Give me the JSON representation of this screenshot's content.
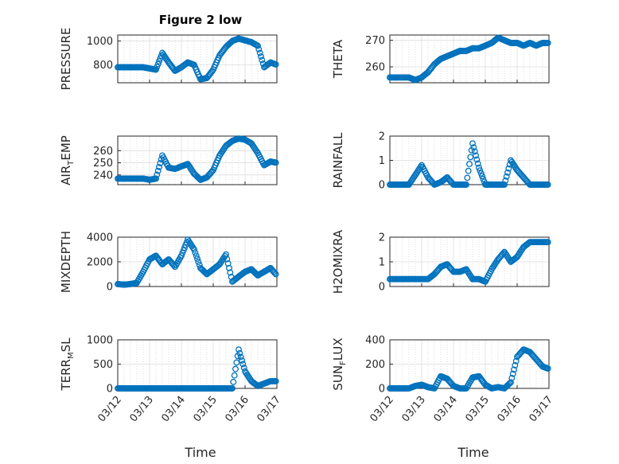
{
  "figure_title": "Figure 2 low",
  "x_label": "Time",
  "x_ticks": [
    "03/12",
    "03/13",
    "03/14",
    "03/15",
    "03/16",
    "03/17"
  ],
  "colors": {
    "marker": "#0072BD",
    "axis": "#262626",
    "grid": "#dcdcdc",
    "minor_grid": "#c8c8c8"
  },
  "chart_data": [
    {
      "type": "scatter",
      "ylabel": "PRESSURE",
      "ylim": [
        650,
        1050
      ],
      "yticks": [
        800,
        1000
      ],
      "xlim": [
        0,
        5
      ],
      "x": [
        0.0,
        0.2,
        0.4,
        0.6,
        0.8,
        1.0,
        1.2,
        1.4,
        1.6,
        1.8,
        2.0,
        2.2,
        2.4,
        2.6,
        2.8,
        3.0,
        3.2,
        3.4,
        3.6,
        3.8,
        4.0,
        4.2,
        4.4,
        4.6,
        4.8,
        5.0
      ],
      "y": [
        780,
        780,
        780,
        780,
        780,
        770,
        760,
        900,
        820,
        750,
        780,
        820,
        800,
        680,
        690,
        760,
        880,
        950,
        1000,
        1020,
        1005,
        990,
        960,
        780,
        820,
        800
      ]
    },
    {
      "type": "scatter",
      "ylabel": "THETA",
      "ylim": [
        254,
        272
      ],
      "yticks": [
        260,
        270
      ],
      "xlim": [
        0,
        5
      ],
      "x": [
        0.0,
        0.2,
        0.4,
        0.6,
        0.8,
        1.0,
        1.2,
        1.4,
        1.6,
        1.8,
        2.0,
        2.2,
        2.4,
        2.6,
        2.8,
        3.0,
        3.2,
        3.4,
        3.6,
        3.8,
        4.0,
        4.2,
        4.4,
        4.6,
        4.8,
        5.0
      ],
      "y": [
        256,
        256,
        256,
        256,
        255,
        256,
        258,
        261,
        263,
        264,
        265,
        266,
        266,
        267,
        267,
        268,
        269,
        271,
        270,
        269,
        269,
        268,
        269,
        268,
        269,
        269
      ]
    },
    {
      "type": "scatter",
      "ylabel": "AIR_TEMP",
      "ylim": [
        232,
        272
      ],
      "yticks": [
        240,
        250,
        260
      ],
      "xlim": [
        0,
        5
      ],
      "x": [
        0.0,
        0.2,
        0.4,
        0.6,
        0.8,
        1.0,
        1.2,
        1.4,
        1.6,
        1.8,
        2.0,
        2.2,
        2.4,
        2.6,
        2.8,
        3.0,
        3.2,
        3.4,
        3.6,
        3.8,
        4.0,
        4.2,
        4.4,
        4.6,
        4.8,
        5.0
      ],
      "y": [
        237,
        237,
        237,
        237,
        237,
        236,
        237,
        256,
        246,
        245,
        247,
        249,
        241,
        236,
        238,
        244,
        256,
        264,
        268,
        270,
        269,
        266,
        258,
        248,
        251,
        250
      ]
    },
    {
      "type": "scatter",
      "ylabel": "RAINFALL",
      "ylim": [
        0,
        2
      ],
      "yticks": [
        0,
        1,
        2
      ],
      "xlim": [
        0,
        5
      ],
      "x": [
        0.0,
        0.2,
        0.4,
        0.6,
        0.8,
        1.0,
        1.2,
        1.4,
        1.6,
        1.8,
        2.0,
        2.2,
        2.4,
        2.6,
        2.8,
        3.0,
        3.2,
        3.4,
        3.6,
        3.8,
        4.0,
        4.2,
        4.4,
        4.6,
        4.8,
        5.0
      ],
      "y": [
        0,
        0,
        0,
        0,
        0.4,
        0.8,
        0.3,
        0,
        0.1,
        0.3,
        0,
        0,
        0,
        1.7,
        0.7,
        0,
        0,
        0,
        0,
        1.0,
        0.6,
        0.3,
        0,
        0,
        0,
        0
      ]
    },
    {
      "type": "scatter",
      "ylabel": "MIXDEPTH",
      "ylim": [
        0,
        4000
      ],
      "yticks": [
        0,
        2000,
        4000
      ],
      "xlim": [
        0,
        5
      ],
      "x": [
        0.0,
        0.2,
        0.4,
        0.6,
        0.8,
        1.0,
        1.2,
        1.4,
        1.6,
        1.8,
        2.0,
        2.2,
        2.4,
        2.6,
        2.8,
        3.0,
        3.2,
        3.4,
        3.6,
        3.8,
        4.0,
        4.2,
        4.4,
        4.6,
        4.8,
        5.0
      ],
      "y": [
        200,
        150,
        200,
        300,
        1200,
        2200,
        2500,
        1800,
        2200,
        1600,
        2500,
        3800,
        3000,
        1500,
        1000,
        1400,
        1800,
        2600,
        400,
        800,
        1200,
        1400,
        900,
        1200,
        1500,
        900
      ]
    },
    {
      "type": "scatter",
      "ylabel": "H2OMIXRA",
      "ylim": [
        0,
        2
      ],
      "yticks": [
        0,
        1,
        2
      ],
      "xlim": [
        0,
        5
      ],
      "x": [
        0.0,
        0.2,
        0.4,
        0.6,
        0.8,
        1.0,
        1.2,
        1.4,
        1.6,
        1.8,
        2.0,
        2.2,
        2.4,
        2.6,
        2.8,
        3.0,
        3.2,
        3.4,
        3.6,
        3.8,
        4.0,
        4.2,
        4.4,
        4.6,
        4.8,
        5.0
      ],
      "y": [
        0.3,
        0.3,
        0.3,
        0.3,
        0.3,
        0.3,
        0.3,
        0.5,
        0.8,
        0.9,
        0.6,
        0.6,
        0.7,
        0.3,
        0.3,
        0.2,
        0.7,
        1.1,
        1.4,
        1.0,
        1.2,
        1.6,
        1.8,
        1.8,
        1.8,
        1.8
      ]
    },
    {
      "type": "scatter",
      "ylabel": "TERR_MSL",
      "ylim": [
        0,
        1000
      ],
      "yticks": [
        0,
        500,
        1000
      ],
      "xlim": [
        0,
        5
      ],
      "x": [
        0.0,
        0.2,
        0.4,
        0.6,
        0.8,
        1.0,
        1.2,
        1.4,
        1.6,
        1.8,
        2.0,
        2.2,
        2.4,
        2.6,
        2.8,
        3.0,
        3.2,
        3.4,
        3.6,
        3.8,
        4.0,
        4.2,
        4.4,
        4.6,
        4.8,
        5.0
      ],
      "y": [
        0,
        0,
        0,
        0,
        0,
        0,
        0,
        0,
        0,
        0,
        0,
        0,
        0,
        0,
        0,
        0,
        0,
        0,
        0,
        800,
        350,
        150,
        50,
        100,
        150,
        150
      ]
    },
    {
      "type": "scatter",
      "ylabel": "SUN_FLUX",
      "ylim": [
        0,
        400
      ],
      "yticks": [
        0,
        200,
        400
      ],
      "xlim": [
        0,
        5
      ],
      "x": [
        0.0,
        0.2,
        0.4,
        0.6,
        0.8,
        1.0,
        1.2,
        1.4,
        1.6,
        1.8,
        2.0,
        2.2,
        2.4,
        2.6,
        2.8,
        3.0,
        3.2,
        3.4,
        3.6,
        3.8,
        4.0,
        4.2,
        4.4,
        4.6,
        4.8,
        5.0
      ],
      "y": [
        0,
        0,
        0,
        0,
        20,
        30,
        10,
        0,
        100,
        80,
        20,
        0,
        0,
        90,
        100,
        30,
        0,
        10,
        0,
        50,
        260,
        320,
        300,
        240,
        180,
        160
      ]
    }
  ]
}
